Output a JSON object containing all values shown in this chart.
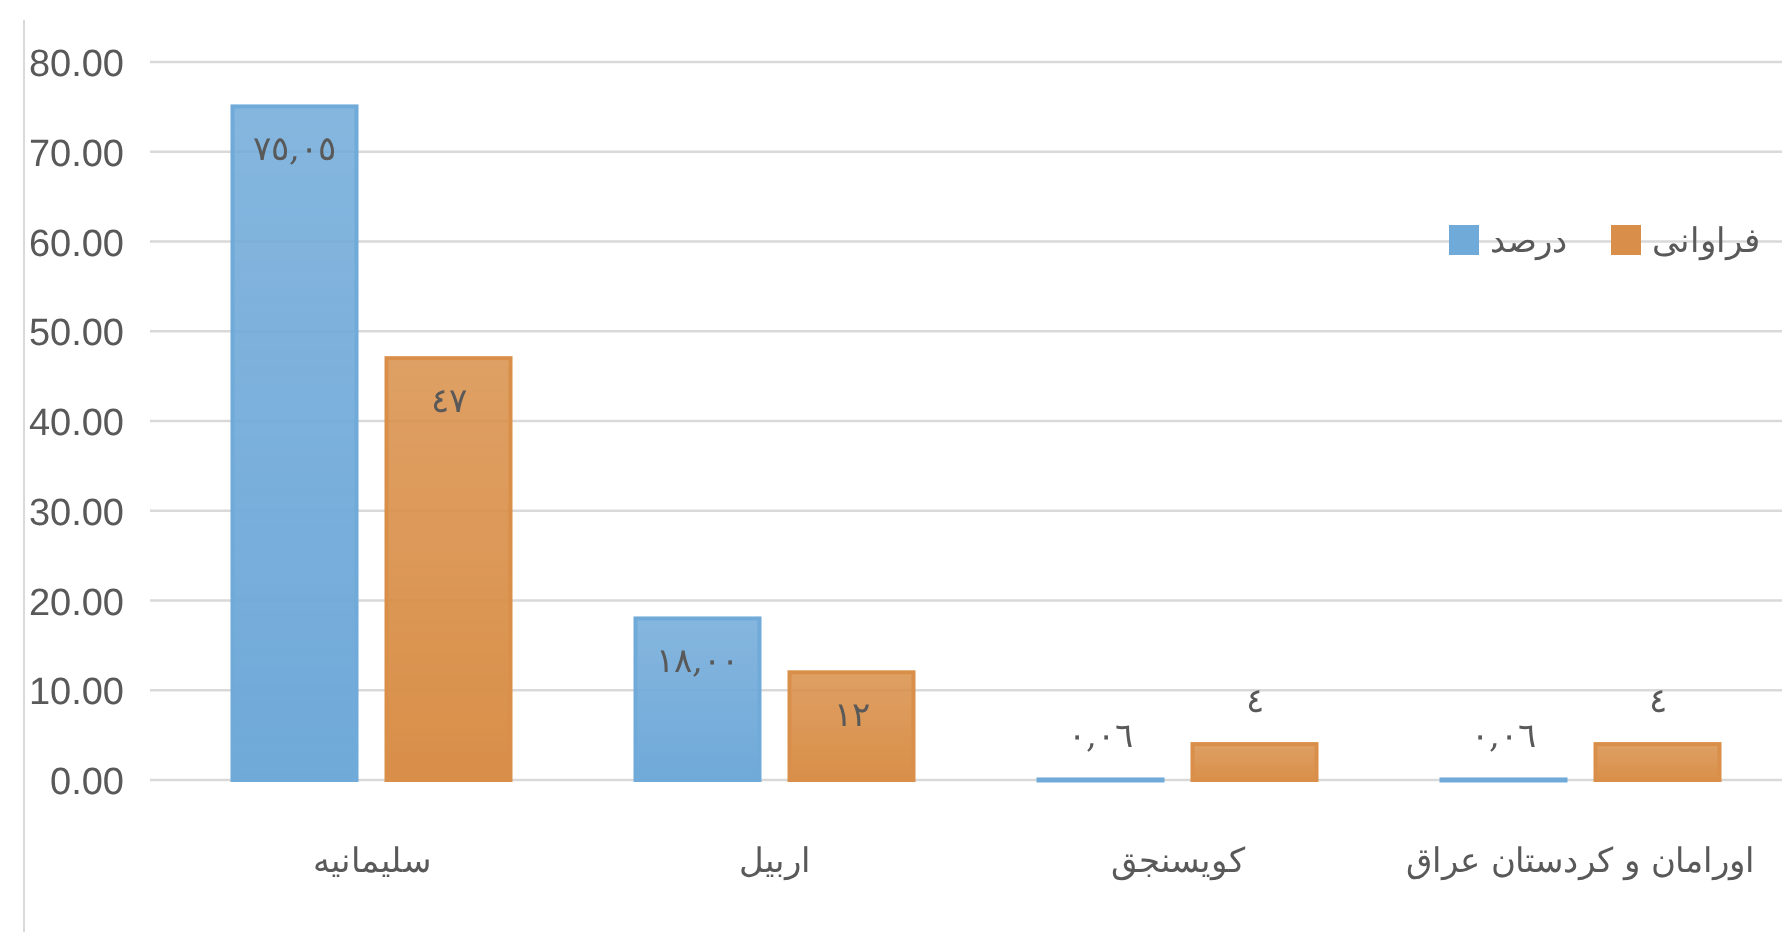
{
  "chart_data": {
    "type": "bar",
    "categories": [
      "سلیمانیه",
      "اربیل",
      "کویسنجق",
      "اورامان و کردستان عراق"
    ],
    "series": [
      {
        "name": "درصد",
        "color": "#9dc3e6",
        "values": [
          75.05,
          18.0,
          0.06,
          0.06
        ],
        "value_labels": [
          "٧٥,٠٥",
          "١٨,٠٠",
          "٠,٠٦",
          "٠,٠٦"
        ]
      },
      {
        "name": "فراوانی",
        "color": "#f4b183",
        "values": [
          47,
          12,
          4,
          4
        ],
        "value_labels": [
          "٤٧",
          "١٢",
          "٤",
          "٤"
        ]
      }
    ],
    "ylim": [
      0,
      80
    ],
    "yticks": [
      {
        "value": 0,
        "label": "0.00"
      },
      {
        "value": 10,
        "label": "10.00"
      },
      {
        "value": 20,
        "label": "20.00"
      },
      {
        "value": 30,
        "label": "30.00"
      },
      {
        "value": 40,
        "label": "40.00"
      },
      {
        "value": 50,
        "label": "50.00"
      },
      {
        "value": 60,
        "label": "60.00"
      },
      {
        "value": 70,
        "label": "70.00"
      },
      {
        "value": 80,
        "label": "80.00"
      }
    ],
    "grid": "y",
    "legend": "top right"
  }
}
